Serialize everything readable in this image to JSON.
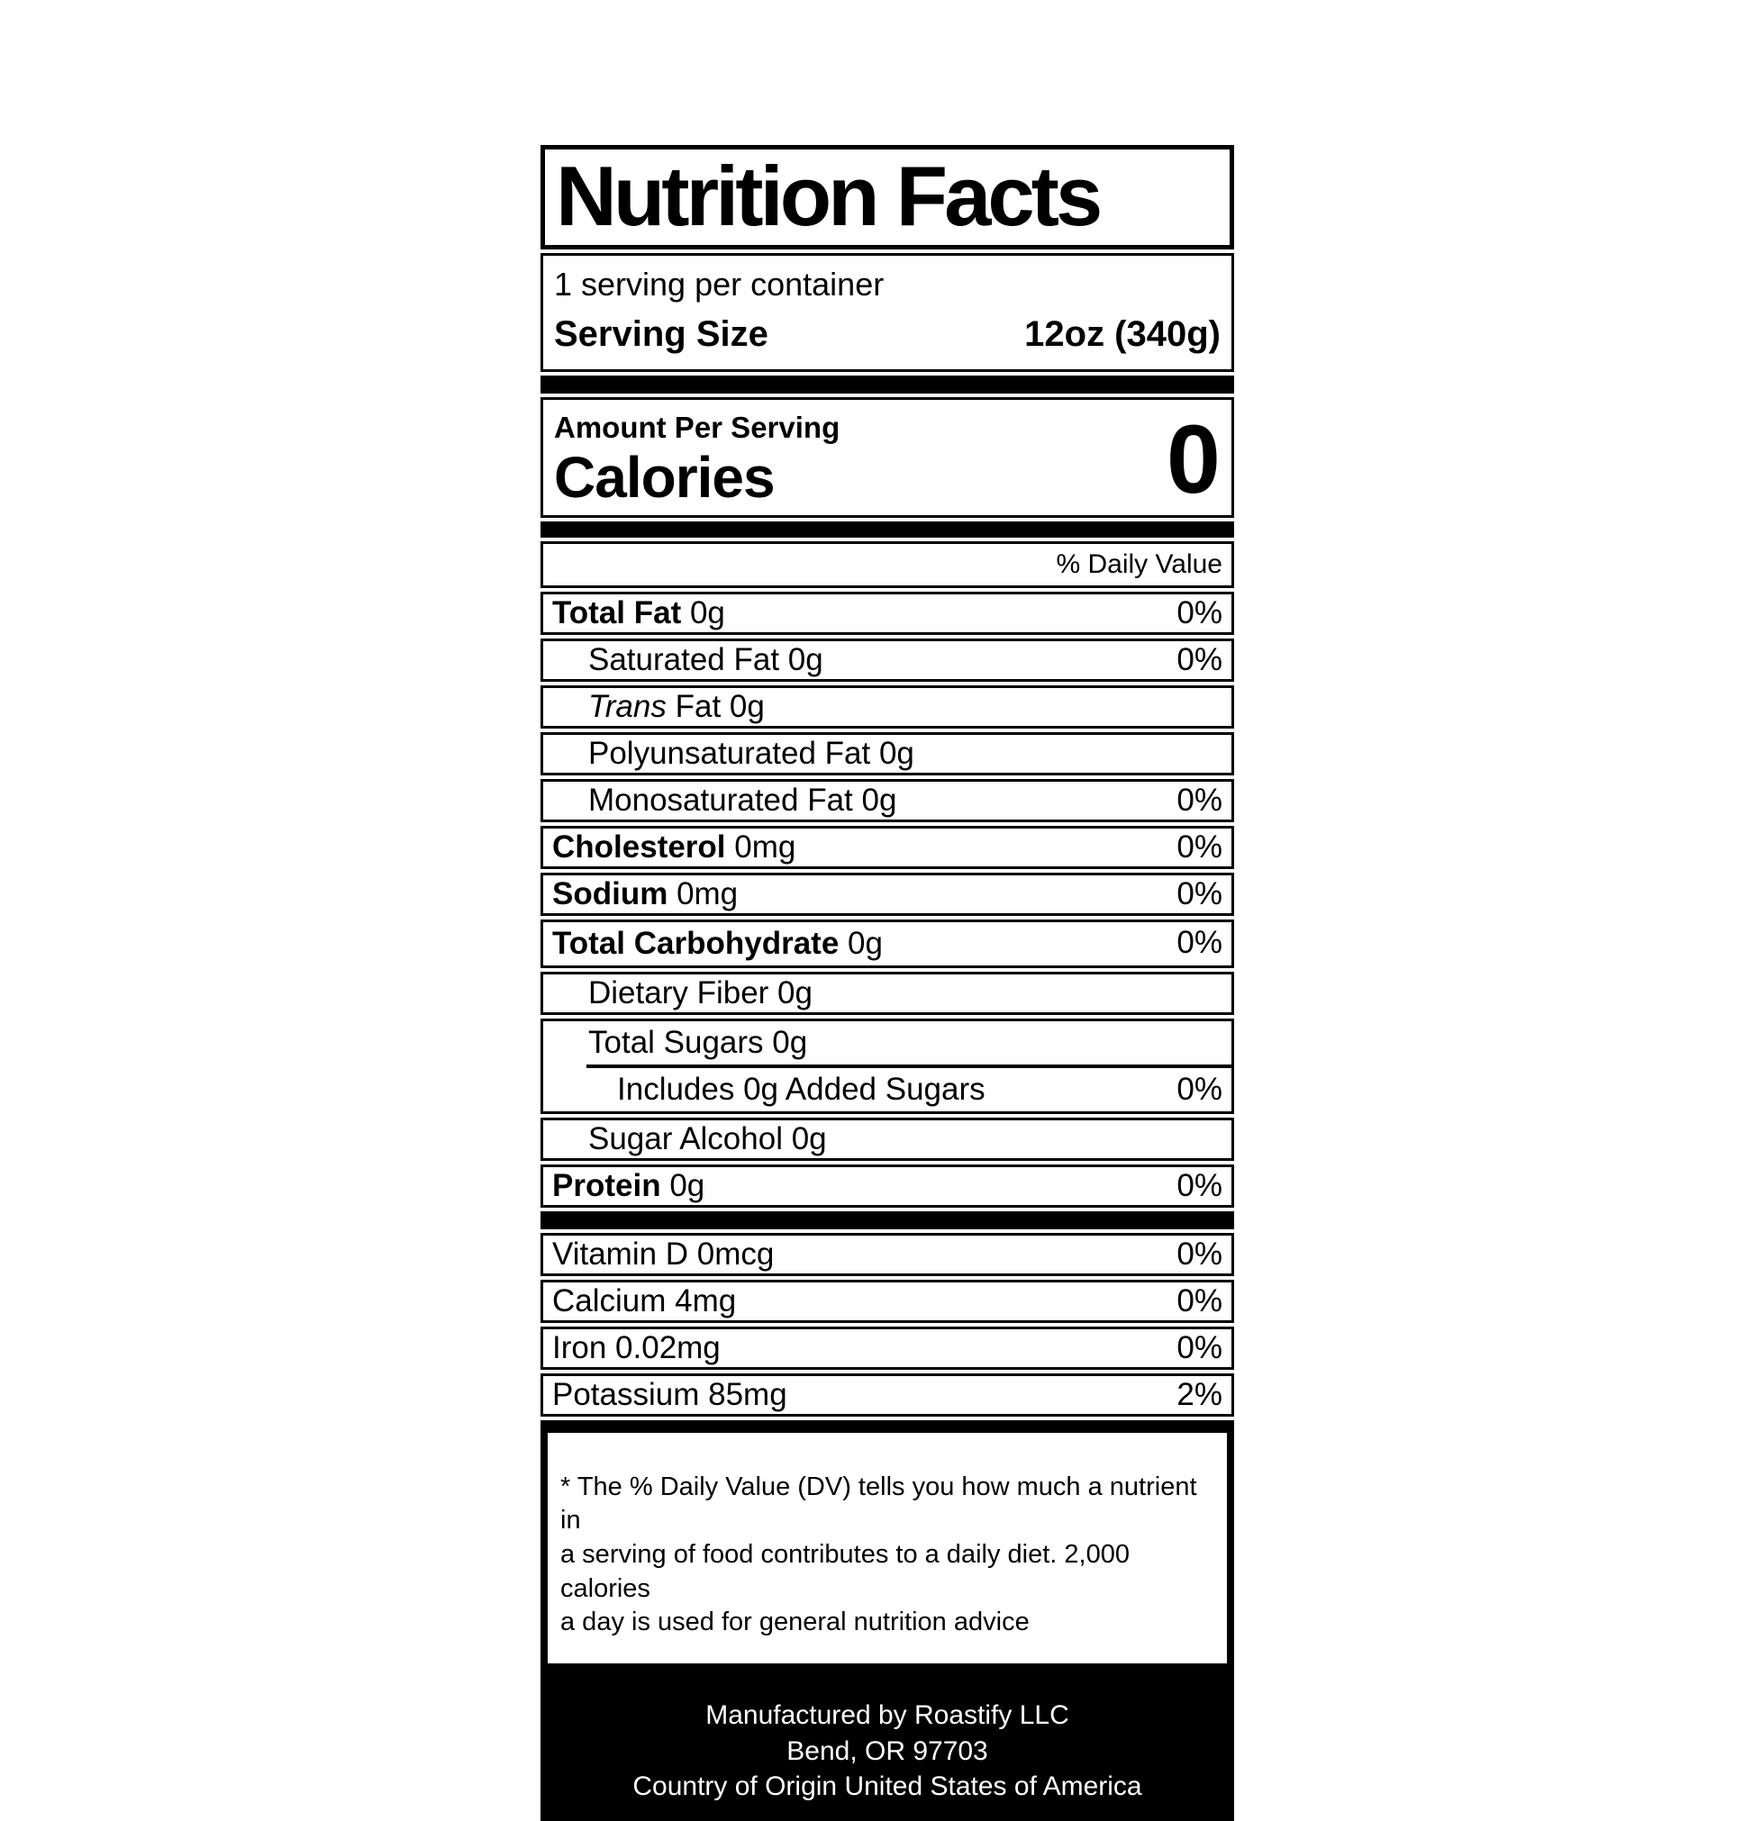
{
  "label": {
    "title": "Nutrition Facts",
    "servings_per_container": "1 serving per container",
    "serving_size_label": "Serving Size",
    "serving_size_value": "12oz (340g)",
    "amount_per_serving": "Amount Per Serving",
    "calories_label": "Calories",
    "calories_value": "0",
    "daily_value_header": "% Daily Value",
    "nutrients": {
      "total_fat": {
        "name": "Total Fat",
        "amount": "0g",
        "dv": "0%"
      },
      "saturated_fat": {
        "text": "Saturated Fat 0g",
        "dv": "0%"
      },
      "trans_fat": {
        "italic": "Trans",
        "text": " Fat 0g",
        "dv": ""
      },
      "polyunsaturated_fat": {
        "text": "Polyunsaturated Fat 0g",
        "dv": ""
      },
      "monosaturated_fat": {
        "text": "Monosaturated Fat 0g",
        "dv": "0%"
      },
      "cholesterol": {
        "name": "Cholesterol",
        "amount": "0mg",
        "dv": "0%"
      },
      "sodium": {
        "name": "Sodium",
        "amount": "0mg",
        "dv": "0%"
      },
      "total_carbohydrate": {
        "name": "Total Carbohydrate",
        "amount": "0g",
        "dv": "0%"
      },
      "dietary_fiber": {
        "text": "Dietary Fiber 0g",
        "dv": ""
      },
      "total_sugars": {
        "text": "Total Sugars 0g",
        "dv": ""
      },
      "added_sugars": {
        "text": "Includes 0g Added Sugars",
        "dv": "0%"
      },
      "sugar_alcohol": {
        "text": "Sugar Alcohol 0g",
        "dv": ""
      },
      "protein": {
        "name": "Protein",
        "amount": "0g",
        "dv": "0%"
      },
      "vitamin_d": {
        "text": "Vitamin D 0mcg",
        "dv": "0%"
      },
      "calcium": {
        "text": "Calcium 4mg",
        "dv": "0%"
      },
      "iron": {
        "text": "Iron 0.02mg",
        "dv": "0%"
      },
      "potassium": {
        "text": "Potassium 85mg",
        "dv": "2%"
      }
    },
    "footnote_lines": [
      "* The % Daily Value (DV) tells you how much a nutrient in",
      "a serving of food contributes to a daily diet. 2,000 calories",
      "a day is used for general nutrition advice"
    ],
    "footer_lines": [
      "Manufactured by Roastify LLC",
      "Bend, OR 97703",
      "Country of Origin United States of America"
    ],
    "colors": {
      "ink": "#000000",
      "paper": "#ffffff",
      "footer_text": "#ffffff"
    }
  }
}
